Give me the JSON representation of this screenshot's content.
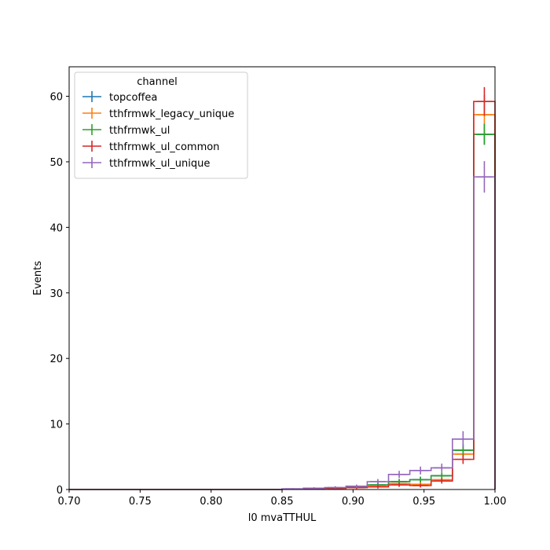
{
  "chart_data": {
    "type": "histogram-step",
    "xlabel": "l0 mvaTTHUL",
    "ylabel": "Events",
    "xlim": [
      0.7,
      1.0
    ],
    "ylim": [
      0,
      64.5
    ],
    "x_ticks": [
      "0.70",
      "0.75",
      "0.80",
      "0.85",
      "0.90",
      "0.95",
      "1.00"
    ],
    "y_ticks": [
      "0",
      "10",
      "20",
      "30",
      "40",
      "50",
      "60"
    ],
    "legend_title": "channel",
    "legend_position": "top-left",
    "grid": false,
    "bin_edges": [
      0.7,
      0.715,
      0.73,
      0.745,
      0.76,
      0.775,
      0.79,
      0.805,
      0.82,
      0.835,
      0.85,
      0.865,
      0.88,
      0.895,
      0.91,
      0.925,
      0.94,
      0.955,
      0.97,
      0.985,
      1.0
    ],
    "series": [
      {
        "name": "topcoffea",
        "color": "#1f77b4",
        "values": [
          0,
          0,
          0,
          0,
          0,
          0,
          0,
          0,
          0,
          0,
          0.05,
          0.1,
          0.2,
          0.4,
          0.7,
          1.2,
          1.5,
          2.1,
          6.0,
          54.2
        ],
        "errors": [
          0,
          0,
          0,
          0,
          0,
          0,
          0,
          0,
          0,
          0,
          0.05,
          0.1,
          0.15,
          0.2,
          0.3,
          0.4,
          0.45,
          0.5,
          0.9,
          1.6
        ]
      },
      {
        "name": "tthfrmwk_legacy_unique",
        "color": "#ff7f0e",
        "values": [
          0,
          0,
          0,
          0,
          0,
          0,
          0,
          0,
          0,
          0,
          0.05,
          0.1,
          0.2,
          0.3,
          0.6,
          0.9,
          0.8,
          1.5,
          5.4,
          57.2
        ],
        "errors": [
          0,
          0,
          0,
          0,
          0,
          0,
          0,
          0,
          0,
          0,
          0.05,
          0.1,
          0.15,
          0.2,
          0.3,
          0.35,
          0.35,
          0.45,
          0.9,
          3.0
        ]
      },
      {
        "name": "tthfrmwk_ul",
        "color": "#2ca02c",
        "values": [
          0,
          0,
          0,
          0,
          0,
          0,
          0,
          0,
          0,
          0,
          0.05,
          0.1,
          0.2,
          0.4,
          0.7,
          1.2,
          1.5,
          2.1,
          6.0,
          54.2
        ],
        "errors": [
          0,
          0,
          0,
          0,
          0,
          0,
          0,
          0,
          0,
          0,
          0.05,
          0.1,
          0.15,
          0.2,
          0.3,
          0.4,
          0.45,
          0.5,
          0.9,
          1.6
        ]
      },
      {
        "name": "tthfrmwk_ul_common",
        "color": "#d62728",
        "values": [
          0,
          0,
          0,
          0,
          0,
          0,
          0,
          0,
          0,
          0,
          0.05,
          0.1,
          0.2,
          0.3,
          0.4,
          0.7,
          0.6,
          1.3,
          4.6,
          59.2
        ],
        "errors": [
          0,
          0,
          0,
          0,
          0,
          0,
          0,
          0,
          0,
          0,
          0.05,
          0.1,
          0.15,
          0.2,
          0.25,
          0.3,
          0.3,
          0.4,
          0.7,
          2.2
        ]
      },
      {
        "name": "tthfrmwk_ul_unique",
        "color": "#9467bd",
        "values": [
          0,
          0,
          0,
          0,
          0,
          0,
          0,
          0,
          0,
          0,
          0.1,
          0.2,
          0.3,
          0.5,
          1.2,
          2.3,
          2.9,
          3.3,
          7.7,
          47.7
        ],
        "errors": [
          0,
          0,
          0,
          0,
          0,
          0,
          0,
          0,
          0,
          0,
          0.1,
          0.15,
          0.2,
          0.25,
          0.4,
          0.55,
          0.6,
          0.65,
          1.2,
          2.4
        ]
      }
    ]
  }
}
